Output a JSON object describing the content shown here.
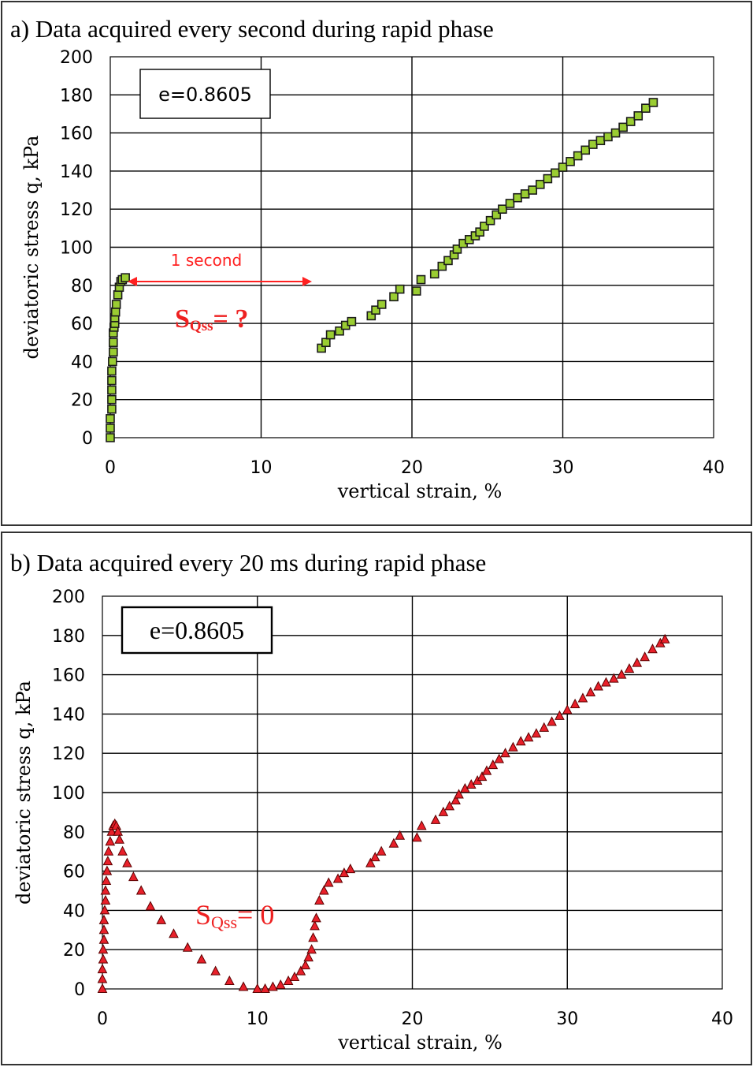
{
  "figure": {
    "panel_a_title": "a) Data acquired every second during rapid phase",
    "panel_b_title": "b) Data acquired every 20 ms during rapid phase"
  },
  "chart_data": [
    {
      "type": "scatter",
      "title": "a) Data acquired every second during rapid phase",
      "xlabel": "vertical strain, %",
      "ylabel": "deviatoric stress q, kPa",
      "xlim": [
        0,
        40
      ],
      "ylim": [
        0,
        200
      ],
      "xticks": [
        0,
        10,
        20,
        30,
        40
      ],
      "yticks": [
        0,
        20,
        40,
        60,
        80,
        100,
        120,
        140,
        160,
        180,
        200
      ],
      "grid": true,
      "marker": "square",
      "marker_color": "#9acd32",
      "inset_box": "e=0.8605",
      "annotations": {
        "arrow_label": "1 second",
        "sq_main": "S",
        "sq_sub": "Qss",
        "sq_rest": "= ?"
      },
      "series": [
        {
          "x": [
            0.0,
            0.0,
            0.0,
            0.1,
            0.1,
            0.1,
            0.1,
            0.1,
            0.15,
            0.2,
            0.2,
            0.2,
            0.25,
            0.3,
            0.3,
            0.35,
            0.4,
            0.5,
            0.6,
            0.7,
            0.8,
            1.0,
            14.0,
            14.3,
            14.6,
            15.2,
            15.6,
            16.0,
            17.3,
            17.6,
            18.0,
            18.8,
            19.2,
            20.3,
            20.6,
            21.5,
            22.0,
            22.4,
            22.8,
            23.0,
            23.4,
            23.8,
            24.2,
            24.5,
            24.8,
            25.2,
            25.6,
            26.0,
            26.5,
            27.0,
            27.5,
            28.0,
            28.5,
            29.0,
            29.5,
            30.0,
            30.5,
            31.0,
            31.5,
            32.0,
            32.5,
            33.0,
            33.5,
            34.0,
            34.5,
            35.0,
            35.5,
            36.0
          ],
          "y": [
            0,
            5,
            10,
            15,
            20,
            25,
            30,
            35,
            40,
            45,
            50,
            55,
            58,
            60,
            63,
            66,
            70,
            75,
            79,
            82,
            83,
            84,
            47,
            50,
            54,
            56,
            59,
            61,
            64,
            67,
            70,
            74,
            78,
            77,
            83,
            86,
            90,
            93,
            96,
            99,
            102,
            104,
            106,
            108,
            111,
            114,
            117,
            120,
            123,
            126,
            128,
            130,
            133,
            136,
            139,
            142,
            145,
            148,
            151,
            154,
            156,
            158,
            160,
            163,
            166,
            169,
            173,
            176
          ]
        }
      ]
    },
    {
      "type": "scatter",
      "title": "b) Data acquired every 20 ms during rapid phase",
      "xlabel": "vertical strain, %",
      "ylabel": "deviatoric stress q, kPa",
      "xlim": [
        0,
        40
      ],
      "ylim": [
        0,
        200
      ],
      "xticks": [
        0,
        10,
        20,
        30,
        40
      ],
      "yticks": [
        0,
        20,
        40,
        60,
        80,
        100,
        120,
        140,
        160,
        180,
        200
      ],
      "grid": true,
      "marker": "triangle",
      "marker_color": "#e8202a",
      "inset_box": "e=0.8605",
      "annotations": {
        "sq_main": "S",
        "sq_sub": "Qss",
        "sq_rest": "= 0"
      },
      "series": [
        {
          "x": [
            0.0,
            0.0,
            0.0,
            0.05,
            0.05,
            0.1,
            0.1,
            0.1,
            0.15,
            0.2,
            0.2,
            0.25,
            0.3,
            0.35,
            0.4,
            0.5,
            0.6,
            0.7,
            0.8,
            0.9,
            1.0,
            1.1,
            1.3,
            1.6,
            2.0,
            2.5,
            3.1,
            3.8,
            4.6,
            5.5,
            6.4,
            7.3,
            8.2,
            9.1,
            10.0,
            10.5,
            11.0,
            11.5,
            12.0,
            12.4,
            12.8,
            13.1,
            13.3,
            13.5,
            13.6,
            13.7,
            13.8,
            14.0,
            14.3,
            14.6,
            15.2,
            15.6,
            16.0,
            17.3,
            17.6,
            18.0,
            18.8,
            19.2,
            20.3,
            20.6,
            21.5,
            22.0,
            22.4,
            22.8,
            23.0,
            23.4,
            23.8,
            24.2,
            24.5,
            24.8,
            25.2,
            25.6,
            26.0,
            26.5,
            27.0,
            27.5,
            28.0,
            28.5,
            29.0,
            29.5,
            30.0,
            30.5,
            31.0,
            31.5,
            32.0,
            32.5,
            33.0,
            33.5,
            34.0,
            34.5,
            35.0,
            35.5,
            36.0,
            36.3
          ],
          "y": [
            0,
            5,
            10,
            15,
            20,
            25,
            30,
            35,
            40,
            45,
            50,
            55,
            60,
            65,
            70,
            75,
            80,
            83,
            84,
            83,
            80,
            76,
            70,
            64,
            57,
            50,
            42,
            35,
            28,
            21,
            15,
            9,
            4,
            1,
            0,
            0,
            1,
            2,
            4,
            6,
            9,
            12,
            16,
            20,
            26,
            32,
            36,
            45,
            50,
            54,
            56,
            59,
            61,
            64,
            67,
            70,
            74,
            78,
            77,
            83,
            86,
            90,
            93,
            96,
            99,
            102,
            104,
            106,
            108,
            111,
            114,
            117,
            120,
            123,
            126,
            128,
            130,
            133,
            136,
            139,
            142,
            145,
            148,
            151,
            154,
            156,
            158,
            160,
            163,
            166,
            169,
            173,
            176,
            178
          ]
        }
      ]
    }
  ]
}
